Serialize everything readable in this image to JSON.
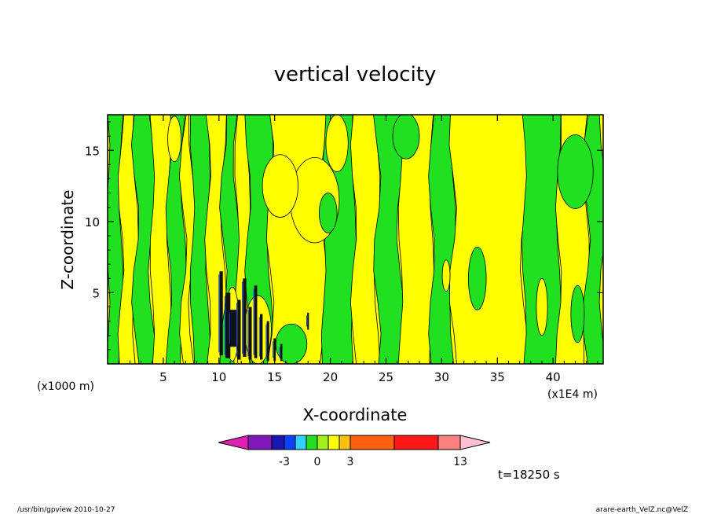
{
  "chart_data": {
    "type": "heatmap",
    "title": "vertical velocity",
    "xlabel": "X-coordinate",
    "ylabel": "Z-coordinate",
    "x_unit_left": "(x1000 m)",
    "x_unit_right": "(x1E4 m)",
    "x_ticks": [
      "5",
      "10",
      "15",
      "20",
      "25",
      "30",
      "35",
      "40"
    ],
    "x_tick_values": [
      5,
      10,
      15,
      20,
      25,
      30,
      35,
      40
    ],
    "y_ticks": [
      "5",
      "10",
      "15"
    ],
    "y_tick_values": [
      5,
      10,
      15
    ],
    "xlim": [
      0,
      44.5
    ],
    "ylim": [
      0,
      17.5
    ],
    "time_label": "t=18250 s",
    "colorbar": {
      "tick_labels": [
        "-3",
        "0",
        "3",
        "13"
      ],
      "tick_values": [
        -3,
        0,
        3,
        13
      ],
      "colors": [
        "#e020b0",
        "#8018b8",
        "#1818b0",
        "#1040ff",
        "#30d0ff",
        "#20e020",
        "#a0f020",
        "#ffff00",
        "#ffc010",
        "#ff6010",
        "#ff1818",
        "#ff8080",
        "#ffc0d0"
      ]
    },
    "bands": [
      {
        "x0": 0,
        "x1": 1.2,
        "level": "green"
      },
      {
        "x0": 1.2,
        "x1": 2.5,
        "level": "yellow"
      },
      {
        "x0": 2.5,
        "x1": 4.0,
        "level": "green"
      },
      {
        "x0": 4.0,
        "x1": 5.5,
        "level": "yellow"
      },
      {
        "x0": 5.5,
        "x1": 6.8,
        "level": "green"
      },
      {
        "x0": 6.8,
        "x1": 7.6,
        "level": "yellow"
      },
      {
        "x0": 7.6,
        "x1": 9.0,
        "level": "green"
      },
      {
        "x0": 9.0,
        "x1": 10.4,
        "level": "yellow"
      },
      {
        "x0": 10.4,
        "x1": 11.6,
        "level": "green"
      },
      {
        "x0": 11.6,
        "x1": 12.6,
        "level": "yellow"
      },
      {
        "x0": 12.6,
        "x1": 14.6,
        "level": "green"
      },
      {
        "x0": 14.6,
        "x1": 19.4,
        "level": "yellow"
      },
      {
        "x0": 19.4,
        "x1": 22.1,
        "level": "green"
      },
      {
        "x0": 22.1,
        "x1": 24.2,
        "level": "yellow"
      },
      {
        "x0": 24.2,
        "x1": 26.3,
        "level": "green"
      },
      {
        "x0": 26.3,
        "x1": 29.1,
        "level": "yellow"
      },
      {
        "x0": 29.1,
        "x1": 31.0,
        "level": "green"
      },
      {
        "x0": 31.0,
        "x1": 37.4,
        "level": "yellow"
      },
      {
        "x0": 37.4,
        "x1": 40.5,
        "level": "green"
      },
      {
        "x0": 40.5,
        "x1": 43.0,
        "level": "yellow"
      },
      {
        "x0": 43.0,
        "x1": 44.5,
        "level": "green"
      }
    ],
    "patches": [
      {
        "cx": 18.6,
        "cy": 11.5,
        "rx": 2.2,
        "ry": 3.0,
        "level": "yellow"
      },
      {
        "cx": 19.8,
        "cy": 10.6,
        "rx": 0.8,
        "ry": 1.4,
        "level": "green"
      },
      {
        "cx": 15.5,
        "cy": 12.5,
        "rx": 1.6,
        "ry": 2.2,
        "level": "yellow"
      },
      {
        "cx": 33.2,
        "cy": 6.0,
        "rx": 0.8,
        "ry": 2.2,
        "level": "green"
      },
      {
        "cx": 30.4,
        "cy": 6.2,
        "rx": 0.35,
        "ry": 1.1,
        "level": "yellow"
      },
      {
        "cx": 42.0,
        "cy": 13.5,
        "rx": 1.6,
        "ry": 2.6,
        "level": "green"
      },
      {
        "cx": 6.0,
        "cy": 15.8,
        "rx": 0.6,
        "ry": 1.6,
        "level": "yellow"
      },
      {
        "cx": 39.0,
        "cy": 4.0,
        "rx": 0.5,
        "ry": 2.0,
        "level": "yellow"
      },
      {
        "cx": 42.2,
        "cy": 3.5,
        "rx": 0.6,
        "ry": 2.0,
        "level": "green"
      },
      {
        "cx": 26.8,
        "cy": 16.0,
        "rx": 1.2,
        "ry": 1.6,
        "level": "green"
      },
      {
        "cx": 20.6,
        "cy": 15.5,
        "rx": 1.0,
        "ry": 2.0,
        "level": "yellow"
      },
      {
        "cx": 13.5,
        "cy": 2.4,
        "rx": 1.2,
        "ry": 2.4,
        "level": "yellow"
      },
      {
        "cx": 11.2,
        "cy": 2.8,
        "rx": 0.6,
        "ry": 2.6,
        "level": "yellow"
      },
      {
        "cx": 16.5,
        "cy": 1.4,
        "rx": 1.4,
        "ry": 1.4,
        "level": "green"
      }
    ],
    "streaks": [
      {
        "x": 10.2,
        "z0": 0.6,
        "z1": 6.5,
        "w": 0.3
      },
      {
        "x": 10.8,
        "z0": 0.4,
        "z1": 5.0,
        "w": 0.45
      },
      {
        "x": 11.3,
        "z0": 1.2,
        "z1": 3.8,
        "w": 0.6
      },
      {
        "x": 11.8,
        "z0": 0.3,
        "z1": 4.5,
        "w": 0.3
      },
      {
        "x": 12.3,
        "z0": 0.5,
        "z1": 6.0,
        "w": 0.3
      },
      {
        "x": 12.8,
        "z0": 0.3,
        "z1": 4.0,
        "w": 0.28
      },
      {
        "x": 13.3,
        "z0": 0.4,
        "z1": 5.5,
        "w": 0.26
      },
      {
        "x": 13.8,
        "z0": 0.3,
        "z1": 3.5,
        "w": 0.24
      },
      {
        "x": 14.4,
        "z0": 0.2,
        "z1": 3.0,
        "w": 0.22
      },
      {
        "x": 15.0,
        "z0": 0.2,
        "z1": 1.8,
        "w": 0.2
      },
      {
        "x": 15.6,
        "z0": 0.2,
        "z1": 1.4,
        "w": 0.18
      },
      {
        "x": 18.0,
        "z0": 2.4,
        "z1": 3.6,
        "w": 0.15
      }
    ]
  },
  "footer": {
    "left": "/usr/bin/gpview   2010-10-27",
    "right": "arare-earth_VelZ.nc@VelZ"
  }
}
